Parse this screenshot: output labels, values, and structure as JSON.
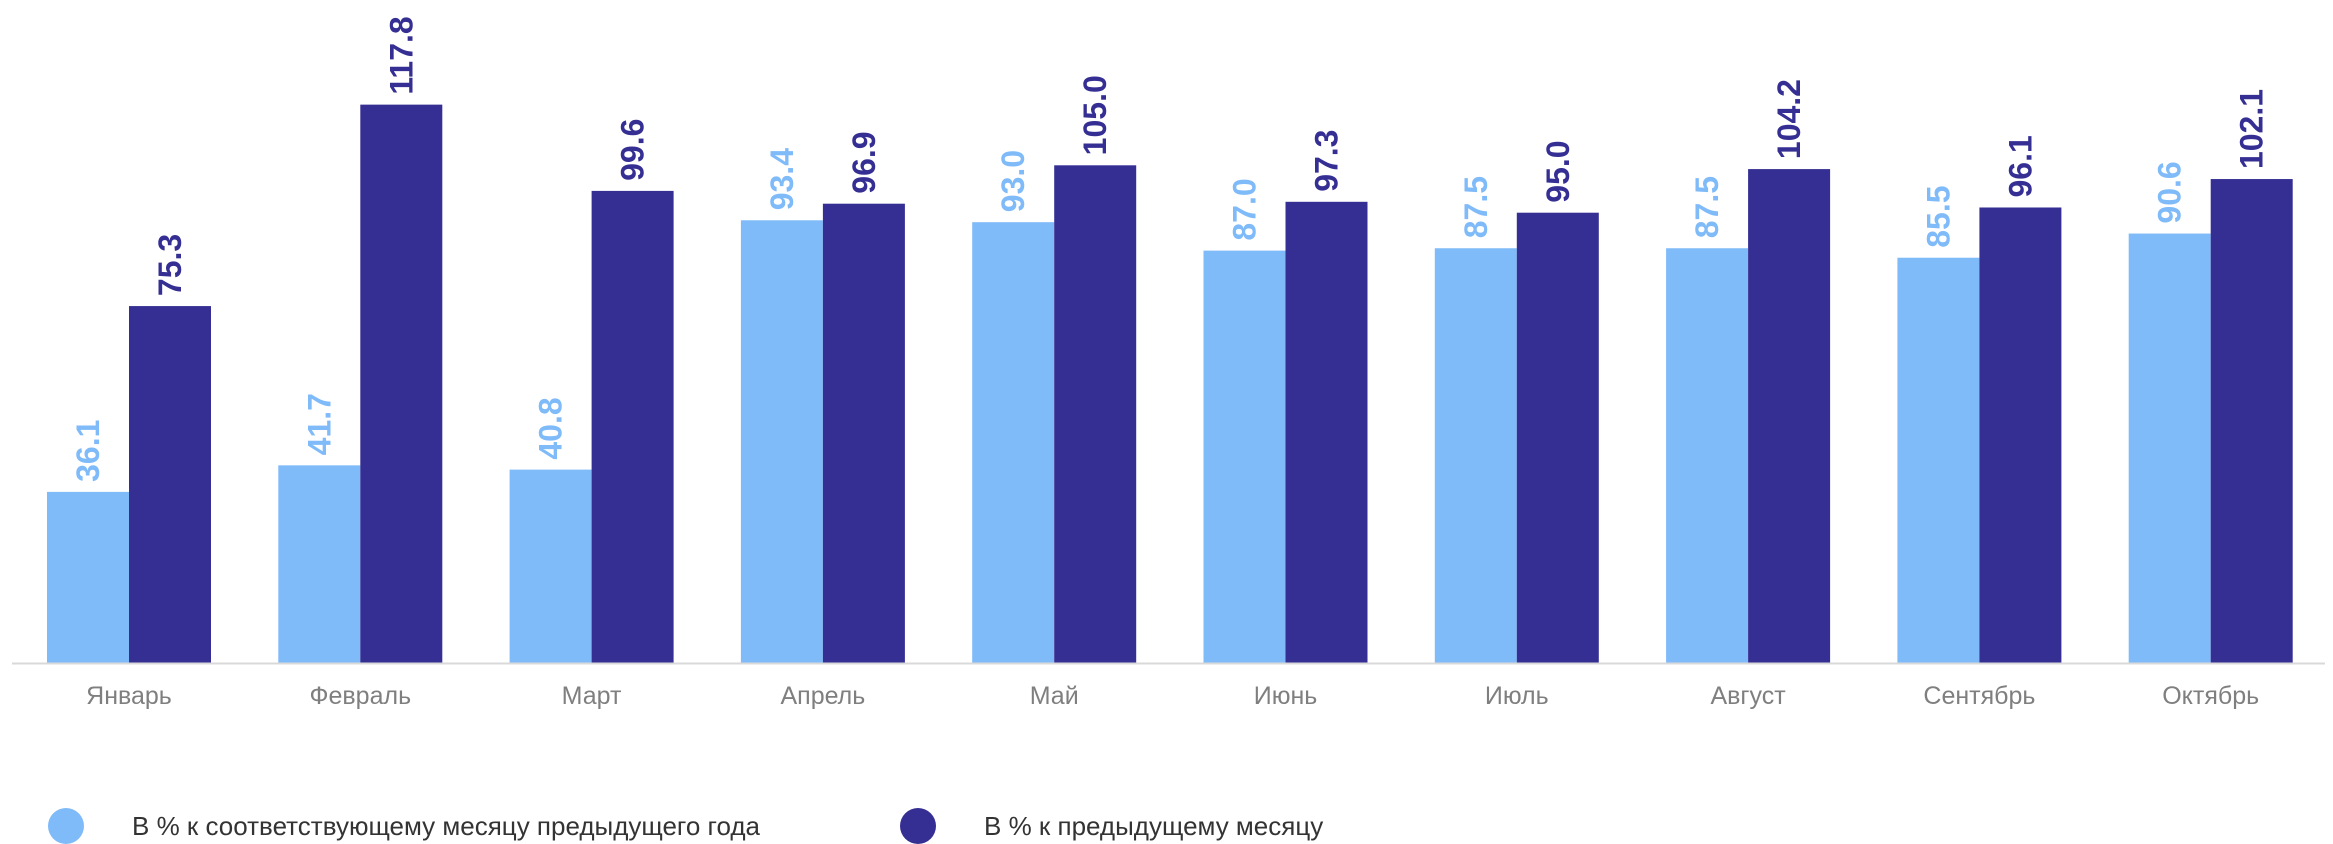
{
  "chart_data": {
    "type": "bar",
    "categories": [
      "Январь",
      "Февраль",
      "Март",
      "Апрель",
      "Май",
      "Июнь",
      "Июль",
      "Август",
      "Сентябрь",
      "Октябрь"
    ],
    "series": [
      {
        "name": "В % к соответствующему месяцу предыдущего года",
        "color": "#7fbaf9",
        "values": [
          36.1,
          41.7,
          40.8,
          93.4,
          93.0,
          87.0,
          87.5,
          87.5,
          85.5,
          90.6
        ]
      },
      {
        "name": "В % к предыдущему месяцу",
        "color": "#352f93",
        "values": [
          75.3,
          117.8,
          99.6,
          96.9,
          105.0,
          97.3,
          95.0,
          104.2,
          96.1,
          102.1
        ]
      }
    ],
    "ylim": [
      0,
      140
    ],
    "grid": false,
    "legend_position": "bottom-left",
    "value_labels": true
  },
  "legend": {
    "items": [
      {
        "label": "В % к соответствующему месяцу предыдущего года",
        "color": "#7fbaf9"
      },
      {
        "label": "В % к предыдущему месяцу",
        "color": "#352f93"
      }
    ]
  }
}
